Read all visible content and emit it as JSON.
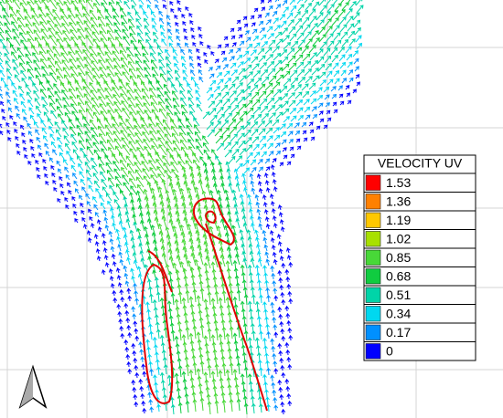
{
  "legend": {
    "title": "VELOCITY UV",
    "entries": [
      {
        "label": "1.53",
        "color": "#ff0000"
      },
      {
        "label": "1.36",
        "color": "#ff8000"
      },
      {
        "label": "1.19",
        "color": "#ffc800"
      },
      {
        "label": "1.02",
        "color": "#a8e000"
      },
      {
        "label": "0.85",
        "color": "#48d838"
      },
      {
        "label": "0.68",
        "color": "#10cc40"
      },
      {
        "label": "0.51",
        "color": "#00d4a8"
      },
      {
        "label": "0.34",
        "color": "#00d8f0"
      },
      {
        "label": "0.17",
        "color": "#0090ff"
      },
      {
        "label": "0",
        "color": "#0000ff"
      }
    ]
  }
}
